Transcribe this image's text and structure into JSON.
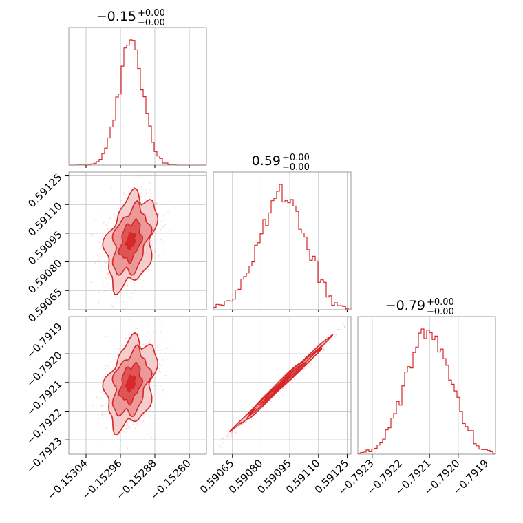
{
  "colors": {
    "accent": "#d62728",
    "fill_light": "#f4c9c9",
    "fill_mid": "#ea8f8f",
    "fill_dark": "#dc4e4e",
    "frame": "#999999",
    "grid": "#c8c8c8"
  },
  "chart_data": {
    "type": "corner",
    "grid": true,
    "parameters": [
      {
        "title": {
          "value": "−0.15",
          "plus": "+0.00",
          "minus": "−0.00"
        },
        "range": [
          -0.15308,
          -0.15276
        ],
        "ticks": [
          -0.15304,
          -0.15296,
          -0.15288,
          -0.1528
        ],
        "tick_labels": [
          "−0.15304",
          "−0.15296",
          "−0.15288",
          "−0.15280"
        ],
        "hist_mean": -0.152936,
        "hist_sd": 2.85e-05
      },
      {
        "title": {
          "value": "0.59",
          "plus": "+0.00",
          "minus": "−0.00"
        },
        "range": [
          0.59055,
          0.59127
        ],
        "ticks": [
          0.59065,
          0.5908,
          0.59095,
          0.5911,
          0.59125
        ],
        "tick_labels": [
          "0.59065",
          "0.59080",
          "0.59095",
          "0.59110",
          "0.59125"
        ],
        "hist_mean": 0.59091,
        "hist_sd": 0.00012
      },
      {
        "title": {
          "value": "−0.79",
          "plus": "+0.00",
          "minus": "−0.00"
        },
        "range": [
          -0.79235,
          -0.79187
        ],
        "ticks": [
          -0.7923,
          -0.7922,
          -0.7921,
          -0.792,
          -0.7919
        ],
        "tick_labels": [
          "−0.7923",
          "−0.7922",
          "−0.7921",
          "−0.7920",
          "−0.7919"
        ],
        "hist_mean": -0.792103,
        "hist_sd": 7.65e-05
      }
    ],
    "correlations": {
      "0-1": 0.35,
      "0-2": 0.33,
      "1-2": 0.995
    }
  }
}
